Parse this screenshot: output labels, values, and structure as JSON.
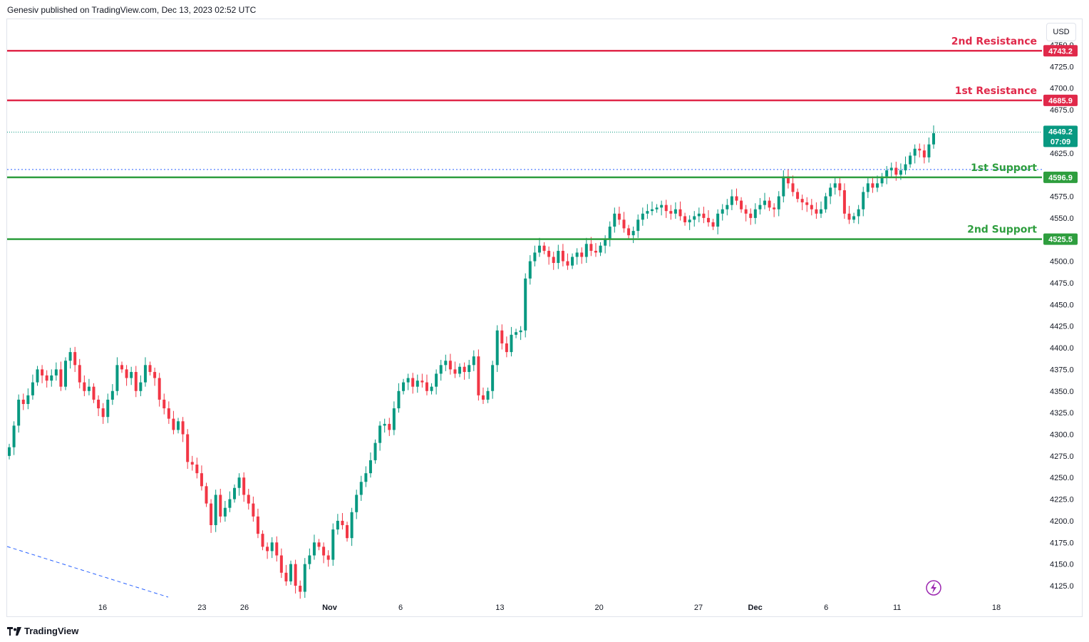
{
  "header": {
    "published": "Genesiv published on TradingView.com, Dec 13, 2023 02:52 UTC"
  },
  "footer": {
    "brand": "TradingView"
  },
  "currency": "USD",
  "colors": {
    "up": "#089981",
    "down": "#f23645",
    "resistance": "#e0294a",
    "support": "#2e9e3e",
    "dashed": "#2962ff"
  },
  "icons": [
    "tradingview-logo-icon",
    "lightning-icon"
  ],
  "chart_data": {
    "type": "candlestick",
    "ylim": [
      4110,
      4760
    ],
    "y_ticks": [
      4125.0,
      4150.0,
      4175.0,
      4200.0,
      4225.0,
      4250.0,
      4275.0,
      4300.0,
      4325.0,
      4350.0,
      4375.0,
      4400.0,
      4425.0,
      4450.0,
      4475.0,
      4500.0,
      4525.0,
      4550.0,
      4575.0,
      4600.0,
      4625.0,
      4650.0,
      4675.0,
      4700.0,
      4725.0,
      4750.0
    ],
    "x_ticks": [
      {
        "label": "16",
        "day": 16
      },
      {
        "label": "23",
        "day": 23
      },
      {
        "label": "26",
        "day": 26
      },
      {
        "label": "Nov",
        "day": 32
      },
      {
        "label": "6",
        "day": 37
      },
      {
        "label": "13",
        "day": 44
      },
      {
        "label": "20",
        "day": 51
      },
      {
        "label": "27",
        "day": 58
      },
      {
        "label": "Dec",
        "day": 62
      },
      {
        "label": "6",
        "day": 67
      },
      {
        "label": "11",
        "day": 72
      },
      {
        "label": "18",
        "day": 79
      }
    ],
    "levels": [
      {
        "name": "2nd Resistance",
        "value": 4743.2,
        "kind": "resistance"
      },
      {
        "name": "1st Resistance",
        "value": 4685.9,
        "kind": "resistance"
      },
      {
        "name": "1st Support",
        "value": 4596.9,
        "kind": "support"
      },
      {
        "name": "2nd Support",
        "value": 4525.5,
        "kind": "support"
      }
    ],
    "last_price": {
      "value": 4649.2,
      "countdown": "07:09"
    },
    "dotted_level": 4606,
    "closes": [
      4285,
      4310,
      4340,
      4335,
      4345,
      4360,
      4375,
      4368,
      4362,
      4368,
      4375,
      4355,
      4385,
      4395,
      4380,
      4360,
      4350,
      4355,
      4340,
      4330,
      4320,
      4340,
      4350,
      4380,
      4375,
      4365,
      4372,
      4350,
      4360,
      4380,
      4372,
      4365,
      4340,
      4330,
      4318,
      4305,
      4315,
      4300,
      4268,
      4265,
      4255,
      4240,
      4220,
      4195,
      4230,
      4205,
      4215,
      4225,
      4238,
      4250,
      4230,
      4220,
      4205,
      4185,
      4170,
      4165,
      4175,
      4160,
      4140,
      4130,
      4150,
      4125,
      4118,
      4150,
      4160,
      4175,
      4170,
      4160,
      4155,
      4190,
      4200,
      4195,
      4180,
      4210,
      4230,
      4245,
      4255,
      4270,
      4290,
      4310,
      4312,
      4305,
      4330,
      4350,
      4360,
      4365,
      4355,
      4362,
      4360,
      4350,
      4355,
      4370,
      4380,
      4385,
      4375,
      4370,
      4378,
      4372,
      4380,
      4390,
      4345,
      4340,
      4350,
      4380,
      4420,
      4405,
      4395,
      4415,
      4418,
      4420,
      4480,
      4500,
      4510,
      4518,
      4512,
      4505,
      4498,
      4512,
      4500,
      4495,
      4505,
      4510,
      4505,
      4520,
      4512,
      4510,
      4518,
      4525,
      4540,
      4555,
      4548,
      4538,
      4530,
      4535,
      4548,
      4555,
      4558,
      4560,
      4562,
      4565,
      4558,
      4555,
      4560,
      4552,
      4545,
      4548,
      4552,
      4555,
      4550,
      4545,
      4540,
      4555,
      4560,
      4565,
      4575,
      4570,
      4560,
      4555,
      4550,
      4560,
      4565,
      4570,
      4562,
      4560,
      4575,
      4598,
      4590,
      4580,
      4572,
      4568,
      4565,
      4560,
      4555,
      4560,
      4575,
      4585,
      4590,
      4582,
      4555,
      4548,
      4552,
      4560,
      4580,
      4590,
      4585,
      4590,
      4598,
      4605,
      4608,
      4600,
      4605,
      4612,
      4622,
      4630,
      4628,
      4620,
      4635,
      4648
    ],
    "day_start": 11,
    "day_end": 74
  }
}
